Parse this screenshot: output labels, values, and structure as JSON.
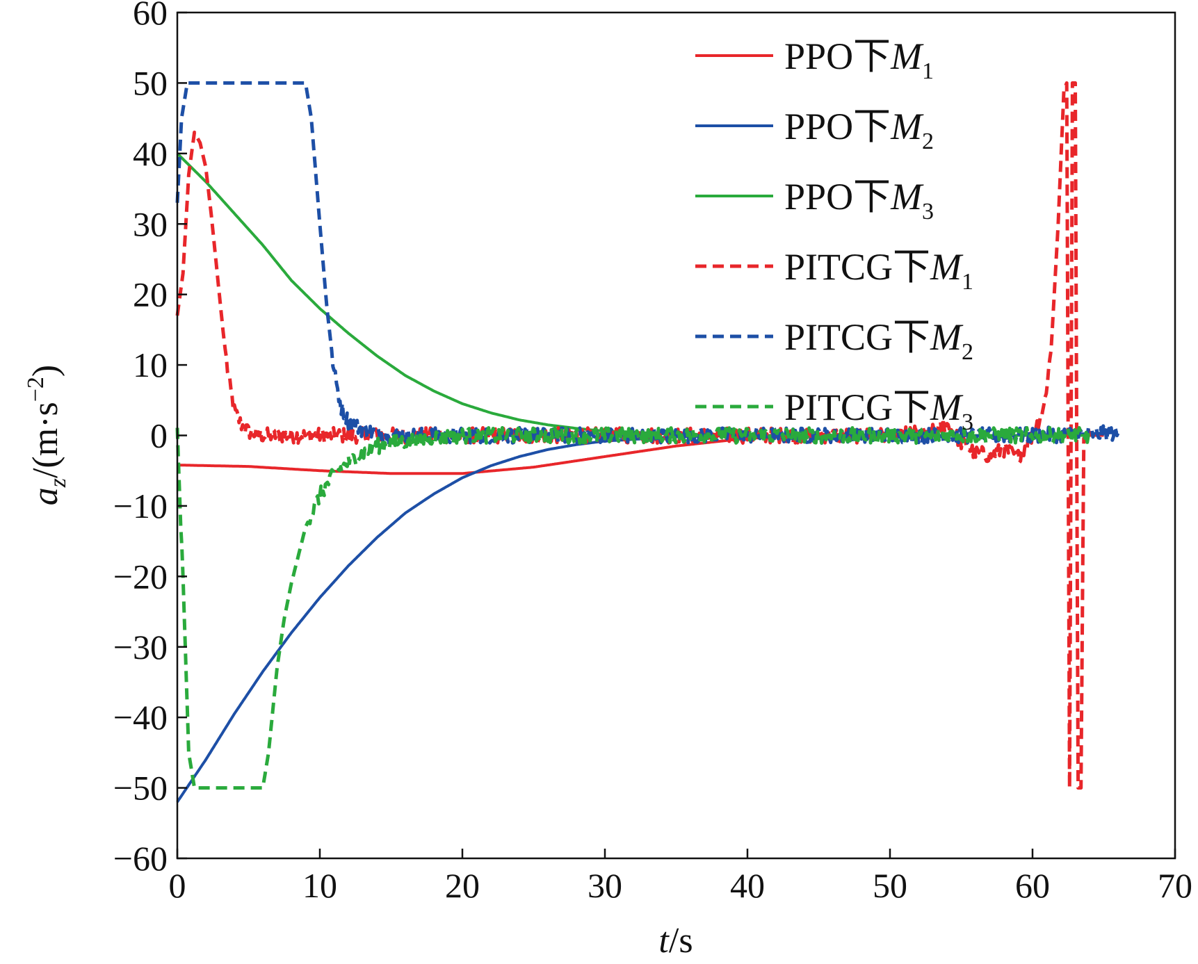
{
  "chart_data": {
    "type": "line",
    "xlabel": {
      "var": "t",
      "unit": "/s"
    },
    "ylabel": {
      "var": "a",
      "sub": "z",
      "unit": "/(m·s",
      "sup": "−2",
      "close": ")"
    },
    "xlim": [
      0,
      70
    ],
    "ylim": [
      -60,
      60
    ],
    "x_ticks": [
      0,
      10,
      20,
      30,
      40,
      50,
      60,
      70
    ],
    "y_ticks": [
      -60,
      -50,
      -40,
      -30,
      -20,
      -10,
      0,
      10,
      20,
      30,
      40,
      50,
      60
    ],
    "x_tick_labels": [
      "0",
      "10",
      "20",
      "30",
      "40",
      "50",
      "60",
      "70"
    ],
    "y_tick_labels": [
      "−60",
      "−50",
      "−40",
      "−30",
      "−20",
      "−10",
      "0",
      "10",
      "20",
      "30",
      "40",
      "50",
      "60"
    ],
    "grid": false,
    "legend_position": "top-right",
    "series": [
      {
        "name": "PPO下M1",
        "label_prefix": "PPO下",
        "label_var": "M",
        "label_sub": "1",
        "color": "#e8262a",
        "dash": "solid",
        "points": [
          [
            0,
            -4.2
          ],
          [
            5,
            -4.4
          ],
          [
            10,
            -5.0
          ],
          [
            15,
            -5.4
          ],
          [
            20,
            -5.4
          ],
          [
            25,
            -4.5
          ],
          [
            30,
            -3.0
          ],
          [
            35,
            -1.5
          ],
          [
            40,
            -0.4
          ],
          [
            45,
            -0.1
          ],
          [
            50,
            0
          ],
          [
            55,
            0
          ],
          [
            60,
            0
          ],
          [
            65,
            0
          ]
        ]
      },
      {
        "name": "PPO下M2",
        "label_prefix": "PPO下",
        "label_var": "M",
        "label_sub": "2",
        "color": "#1d4fa6",
        "dash": "solid",
        "points": [
          [
            0,
            -52
          ],
          [
            2,
            -46
          ],
          [
            4,
            -39.5
          ],
          [
            6,
            -33.5
          ],
          [
            8,
            -28
          ],
          [
            10,
            -23
          ],
          [
            12,
            -18.5
          ],
          [
            14,
            -14.5
          ],
          [
            16,
            -11
          ],
          [
            18,
            -8.3
          ],
          [
            20,
            -6
          ],
          [
            22,
            -4.3
          ],
          [
            24,
            -3
          ],
          [
            26,
            -2
          ],
          [
            28,
            -1.3
          ],
          [
            30,
            -0.8
          ],
          [
            35,
            -0.2
          ],
          [
            40,
            0
          ],
          [
            50,
            0
          ],
          [
            60,
            0
          ],
          [
            66,
            0.4
          ]
        ]
      },
      {
        "name": "PPO下M3",
        "label_prefix": "PPO下",
        "label_var": "M",
        "label_sub": "3",
        "color": "#2aaa3c",
        "dash": "solid",
        "points": [
          [
            0,
            40
          ],
          [
            2,
            36
          ],
          [
            4,
            31.5
          ],
          [
            6,
            27
          ],
          [
            8,
            22
          ],
          [
            10,
            18
          ],
          [
            12,
            14.5
          ],
          [
            14,
            11.3
          ],
          [
            16,
            8.5
          ],
          [
            18,
            6.3
          ],
          [
            20,
            4.5
          ],
          [
            22,
            3.2
          ],
          [
            24,
            2.2
          ],
          [
            26,
            1.5
          ],
          [
            28,
            1.0
          ],
          [
            30,
            0.6
          ],
          [
            35,
            0.2
          ],
          [
            40,
            0
          ],
          [
            50,
            0
          ],
          [
            60,
            0
          ],
          [
            64,
            0
          ]
        ]
      },
      {
        "name": "PITCG下M1",
        "label_prefix": "PITCG下",
        "label_var": "M",
        "label_sub": "1",
        "color": "#e8262a",
        "dash": "dashed",
        "points": [
          [
            0,
            17
          ],
          [
            0.4,
            23
          ],
          [
            0.8,
            37
          ],
          [
            1.2,
            43
          ],
          [
            1.6,
            41.5
          ],
          [
            2,
            38
          ],
          [
            2.4,
            31
          ],
          [
            2.8,
            23
          ],
          [
            3.2,
            15
          ],
          [
            3.6,
            8
          ],
          [
            4,
            3.5
          ],
          [
            4.5,
            1.5
          ],
          [
            5,
            0.5
          ],
          [
            6,
            0
          ],
          [
            10,
            0
          ],
          [
            20,
            0
          ],
          [
            30,
            0
          ],
          [
            40,
            0
          ],
          [
            50,
            0
          ],
          [
            53,
            0.5
          ],
          [
            54,
            1.5
          ],
          [
            55,
            -1
          ],
          [
            56,
            -2.5
          ],
          [
            57,
            -2.8
          ],
          [
            58,
            -2
          ],
          [
            59,
            -3
          ],
          [
            60,
            0
          ],
          [
            60.8,
            4
          ],
          [
            61.3,
            12
          ],
          [
            61.8,
            30
          ],
          [
            62.2,
            49
          ],
          [
            62.4,
            50
          ],
          [
            62.6,
            -50
          ],
          [
            62.8,
            50
          ],
          [
            63.0,
            50
          ],
          [
            63.2,
            -50
          ],
          [
            63.4,
            -50
          ],
          [
            63.6,
            0
          ],
          [
            64,
            0
          ]
        ]
      },
      {
        "name": "PITCG下M2",
        "label_prefix": "PITCG下",
        "label_var": "M",
        "label_sub": "2",
        "color": "#1d4fa6",
        "dash": "dashed",
        "points": [
          [
            0,
            33
          ],
          [
            0.3,
            45
          ],
          [
            0.7,
            50
          ],
          [
            9,
            50
          ],
          [
            9.4,
            45
          ],
          [
            10,
            30
          ],
          [
            10.5,
            18
          ],
          [
            11,
            9
          ],
          [
            11.5,
            4
          ],
          [
            12,
            2
          ],
          [
            13,
            0.8
          ],
          [
            14,
            0.3
          ],
          [
            15,
            0
          ],
          [
            20,
            0
          ],
          [
            30,
            0
          ],
          [
            40,
            0
          ],
          [
            50,
            0
          ],
          [
            60,
            0
          ],
          [
            66,
            0.3
          ]
        ]
      },
      {
        "name": "PITCG下M3",
        "label_prefix": "PITCG下",
        "label_var": "M",
        "label_sub": "3",
        "color": "#2aaa3c",
        "dash": "dashed",
        "points": [
          [
            0,
            0.5
          ],
          [
            0.4,
            -20
          ],
          [
            0.8,
            -45
          ],
          [
            1.2,
            -50
          ],
          [
            6,
            -50
          ],
          [
            6.4,
            -45
          ],
          [
            7,
            -33
          ],
          [
            7.5,
            -26
          ],
          [
            8,
            -21
          ],
          [
            9,
            -13
          ],
          [
            10,
            -8.5
          ],
          [
            11,
            -5.5
          ],
          [
            12,
            -3.8
          ],
          [
            13,
            -2.5
          ],
          [
            14,
            -1.5
          ],
          [
            16,
            -0.8
          ],
          [
            18,
            -0.3
          ],
          [
            20,
            0
          ],
          [
            30,
            0
          ],
          [
            40,
            0
          ],
          [
            50,
            0
          ],
          [
            60,
            0
          ],
          [
            64,
            0
          ]
        ]
      }
    ]
  }
}
